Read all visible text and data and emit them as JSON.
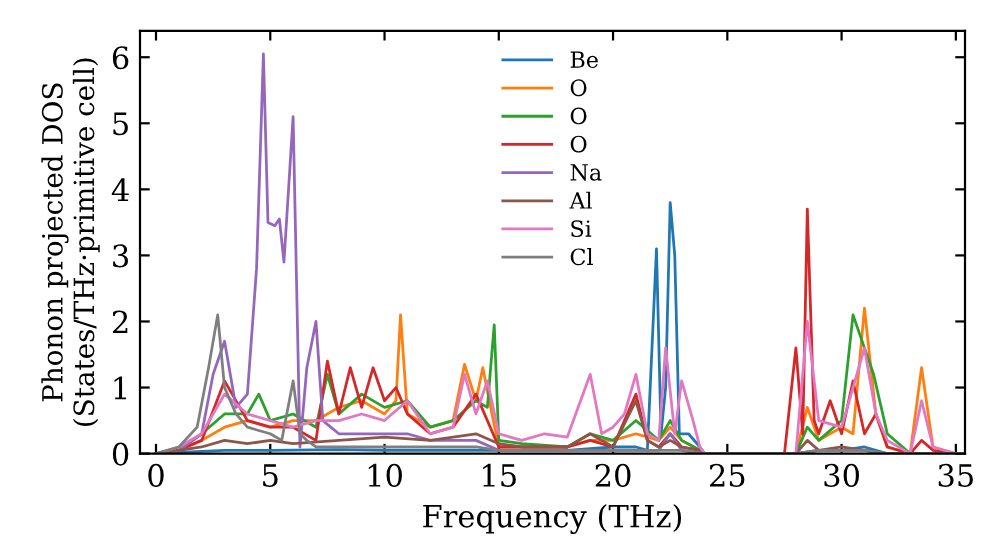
{
  "chart_data": {
    "type": "line",
    "xlabel": "Frequency (THz)",
    "ylabel": "Phonon projected DOS\n(States/THz·primitive cell)",
    "xlim": [
      -0.7,
      35.4
    ],
    "ylim": [
      0,
      6.4
    ],
    "xticks": [
      0,
      5,
      10,
      15,
      20,
      25,
      30,
      35
    ],
    "yticks": [
      0,
      1,
      2,
      3,
      4,
      5,
      6
    ],
    "legend": "top",
    "grid": false,
    "marker": "none",
    "line_style": "solid",
    "series": [
      {
        "name": "Be",
        "color": "#1f77b4",
        "x": [
          0,
          1,
          3,
          5,
          8,
          10,
          12,
          14,
          15,
          18,
          20,
          21,
          21.5,
          21.9,
          22.1,
          22.3,
          22.5,
          22.7,
          22.9,
          23.3,
          23.8,
          24,
          28,
          29,
          30,
          31,
          32,
          35
        ],
        "values": [
          0,
          0.02,
          0.05,
          0.05,
          0.06,
          0.05,
          0.05,
          0.05,
          0.05,
          0.05,
          0.1,
          0.1,
          0.05,
          3.1,
          0.3,
          1.0,
          3.8,
          3.0,
          0.3,
          0.3,
          0.1,
          0,
          0,
          0.05,
          0.05,
          0.1,
          0,
          0
        ]
      },
      {
        "name": "O",
        "color": "#ff7f0e",
        "x": [
          0,
          1,
          2,
          3,
          4,
          5,
          6,
          7,
          8,
          9,
          10,
          10.5,
          10.7,
          11,
          12,
          13,
          13.5,
          14,
          14.3,
          14.7,
          15,
          16,
          18,
          19,
          20,
          21,
          22,
          22.5,
          23,
          23.8,
          24,
          28,
          28.5,
          29,
          30,
          30.5,
          31,
          31.5,
          32,
          33,
          33.5,
          34,
          35
        ],
        "values": [
          0,
          0.05,
          0.2,
          0.4,
          0.5,
          0.4,
          0.5,
          0.5,
          0.7,
          0.8,
          0.6,
          0.8,
          2.1,
          0.6,
          0.4,
          0.5,
          1.35,
          0.8,
          1.3,
          0.6,
          0.1,
          0.1,
          0.1,
          0.2,
          0.2,
          0.3,
          0.2,
          0.4,
          0.2,
          0.05,
          0,
          0,
          0.7,
          0.2,
          0.4,
          0.3,
          2.2,
          0.6,
          0.1,
          0,
          1.3,
          0.1,
          0
        ]
      },
      {
        "name": "O",
        "color": "#2ca02c",
        "x": [
          0,
          1,
          2,
          3,
          4,
          4.5,
          5,
          6,
          7,
          7.5,
          8,
          9,
          10,
          11,
          12,
          13,
          14,
          14.5,
          14.8,
          15,
          16,
          18,
          19,
          20,
          21,
          22,
          22.5,
          23,
          23.8,
          24,
          28,
          28.5,
          29,
          30,
          30.5,
          31,
          31.4,
          32,
          33,
          35
        ],
        "values": [
          0,
          0.05,
          0.3,
          0.6,
          0.6,
          0.9,
          0.5,
          0.6,
          0.4,
          1.2,
          0.6,
          0.9,
          0.7,
          0.8,
          0.4,
          0.5,
          0.8,
          0.7,
          1.95,
          0.2,
          0.15,
          0.1,
          0.3,
          0.2,
          0.5,
          0.2,
          0.5,
          0.2,
          0.05,
          0,
          0,
          0.4,
          0.2,
          0.5,
          2.1,
          1.6,
          1.2,
          0.3,
          0,
          0
        ]
      },
      {
        "name": "O",
        "color": "#d62728",
        "x": [
          0,
          1,
          2,
          3,
          4,
          5,
          6,
          7,
          7.5,
          8,
          8.5,
          9,
          9.5,
          10,
          10.5,
          11,
          12,
          13,
          14,
          15,
          16,
          18,
          19,
          20,
          21,
          21.5,
          22,
          22.5,
          23,
          23.8,
          24,
          27.5,
          28,
          28.3,
          28.5,
          28.8,
          29,
          29.5,
          30,
          30.5,
          31,
          31.5,
          32,
          33,
          33.5,
          34,
          35
        ],
        "values": [
          0,
          0.05,
          0.2,
          1.1,
          0.5,
          0.4,
          0.4,
          0.2,
          1.4,
          0.6,
          1.3,
          0.7,
          1.3,
          0.8,
          1.0,
          0.6,
          0.3,
          0.4,
          0.9,
          0.1,
          0.1,
          0.1,
          0.2,
          0.1,
          0.9,
          0.2,
          0.1,
          0.3,
          0.1,
          0.05,
          0,
          0,
          1.6,
          0.3,
          3.7,
          0.5,
          0.3,
          0.8,
          0.3,
          1.1,
          0.3,
          0.6,
          0.1,
          0,
          0.2,
          0.05,
          0
        ]
      },
      {
        "name": "Na",
        "color": "#9467bd",
        "x": [
          0,
          1,
          2,
          2.5,
          3,
          3.5,
          4,
          4.4,
          4.7,
          4.9,
          5.2,
          5.4,
          5.6,
          6,
          6.3,
          6.6,
          7,
          7.3,
          8,
          9,
          10,
          11,
          12,
          14,
          15,
          18,
          20,
          22,
          22.5,
          23,
          24,
          28,
          29,
          31,
          32,
          35
        ],
        "values": [
          0,
          0.05,
          0.3,
          1.2,
          1.7,
          0.7,
          0.9,
          2.8,
          6.05,
          3.5,
          3.45,
          3.55,
          2.9,
          5.1,
          0.1,
          1.3,
          2.0,
          0.5,
          0.3,
          0.3,
          0.3,
          0.3,
          0.2,
          0.2,
          0.05,
          0.05,
          0.05,
          0.05,
          0.3,
          0.05,
          0,
          0,
          0.05,
          0.05,
          0,
          0
        ]
      },
      {
        "name": "Al",
        "color": "#8c564b",
        "x": [
          0,
          1,
          2,
          3,
          4,
          5,
          6,
          8,
          10,
          12,
          14,
          15,
          16,
          18,
          19,
          20,
          21,
          21.5,
          22,
          22.5,
          23,
          23.8,
          24,
          28,
          28.5,
          29,
          30,
          31,
          32,
          33,
          35
        ],
        "values": [
          0,
          0.05,
          0.1,
          0.2,
          0.15,
          0.2,
          0.15,
          0.2,
          0.25,
          0.2,
          0.3,
          0.15,
          0.1,
          0.1,
          0.3,
          0.1,
          0.8,
          0.2,
          0.1,
          0.2,
          0.1,
          0.05,
          0,
          0,
          0.2,
          0.05,
          0.1,
          0.05,
          0,
          0,
          0
        ]
      },
      {
        "name": "Si",
        "color": "#e377c2",
        "x": [
          0,
          1,
          2,
          3,
          4,
          5,
          6,
          7,
          8,
          9,
          10,
          11,
          12,
          13,
          13.5,
          14,
          14.5,
          15,
          16,
          17,
          18,
          19,
          19.5,
          20,
          20.5,
          21,
          21.5,
          22,
          22.3,
          22.7,
          23,
          23.5,
          23.8,
          24,
          28,
          28.5,
          29,
          30,
          30.5,
          31,
          31.5,
          32,
          33,
          33.5,
          34,
          35
        ],
        "values": [
          0,
          0.1,
          0.3,
          0.9,
          0.6,
          0.5,
          0.4,
          0.5,
          0.5,
          0.6,
          0.5,
          0.8,
          0.3,
          0.4,
          1.2,
          0.6,
          1.1,
          0.3,
          0.2,
          0.3,
          0.25,
          1.2,
          0.3,
          0.4,
          0.6,
          1.2,
          0.3,
          0.2,
          1.6,
          0.3,
          1.1,
          0.5,
          0.1,
          0,
          0,
          2.0,
          0.5,
          0.4,
          1.0,
          1.6,
          0.6,
          0.2,
          0,
          0.8,
          0.1,
          0
        ]
      },
      {
        "name": "Cl",
        "color": "#7f7f7f",
        "x": [
          0,
          1,
          1.8,
          2.3,
          2.7,
          3,
          3.5,
          4,
          5,
          5.5,
          6,
          6.3,
          6.6,
          7,
          8,
          10,
          12,
          14,
          15,
          18,
          20,
          22,
          23,
          24,
          28,
          29,
          31,
          32,
          35
        ],
        "values": [
          0,
          0.1,
          0.4,
          1.3,
          2.1,
          1.0,
          0.6,
          0.4,
          0.3,
          0.2,
          1.1,
          0.3,
          0.2,
          0.1,
          0.1,
          0.1,
          0.1,
          0.1,
          0.05,
          0.05,
          0.05,
          0.05,
          0.05,
          0,
          0,
          0.05,
          0.05,
          0,
          0
        ]
      }
    ]
  }
}
